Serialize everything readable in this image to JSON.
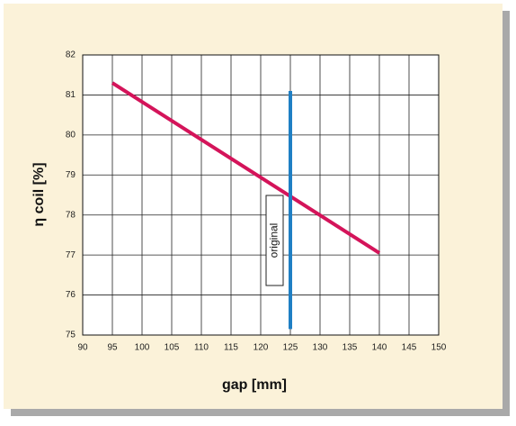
{
  "chart_data": {
    "type": "line",
    "xlabel": "gap [mm]",
    "ylabel": "η coil [%]",
    "xlim": [
      90,
      150
    ],
    "xticks": [
      90,
      95,
      100,
      105,
      110,
      115,
      120,
      125,
      130,
      135,
      140,
      145,
      150
    ],
    "ylim": [
      75,
      82
    ],
    "yticks": [
      75,
      76,
      77,
      78,
      79,
      80,
      81,
      82
    ],
    "grid": true,
    "series": [
      {
        "color": "#d4145a",
        "x": [
          95,
          140
        ],
        "values": [
          81.3,
          77.05
        ]
      },
      {
        "color": "#1f7fc4",
        "x": [
          125,
          125
        ],
        "values": [
          81.1,
          75.15
        ]
      }
    ],
    "annotation": "original"
  }
}
